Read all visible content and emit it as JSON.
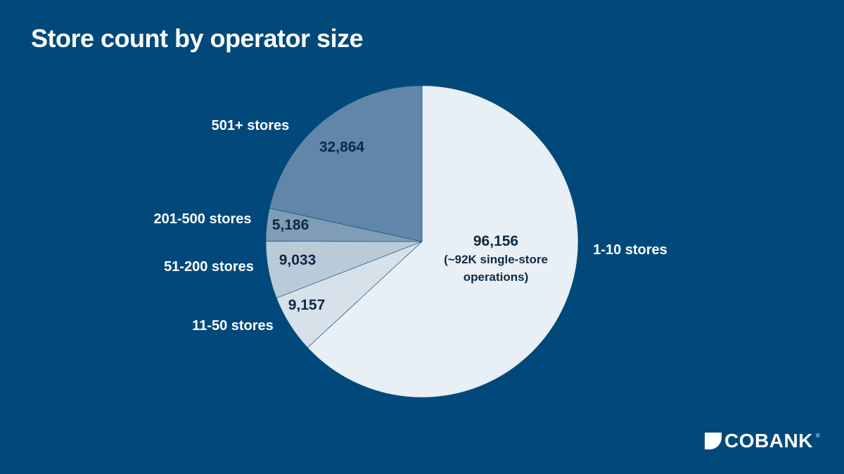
{
  "chart_data": {
    "type": "pie",
    "title": "Store count by operator size",
    "slices": [
      {
        "label": "1-10 stores",
        "value": 96156,
        "value_label": "96,156",
        "note_lines": [
          "(~92K single-store",
          "operations)"
        ],
        "color": "#e8eff5"
      },
      {
        "label": "11-50 stores",
        "value": 9157,
        "value_label": "9,157",
        "note_lines": [],
        "color": "#d7e1ea"
      },
      {
        "label": "51-200 stores",
        "value": 9033,
        "value_label": "9,033",
        "note_lines": [],
        "color": "#b9cad9"
      },
      {
        "label": "201-500 stores",
        "value": 5186,
        "value_label": "5,186",
        "note_lines": [],
        "color": "#7f9db6"
      },
      {
        "label": "501+ stores",
        "value": 32864,
        "value_label": "32,864",
        "note_lines": [],
        "color": "#6186aa"
      }
    ],
    "start": "12 o'clock",
    "direction": "clockwise",
    "value_label_color": "#0e2a44",
    "category_label_color": "#ffffff"
  },
  "logo": {
    "text": "COBANK",
    "tm": "®"
  }
}
